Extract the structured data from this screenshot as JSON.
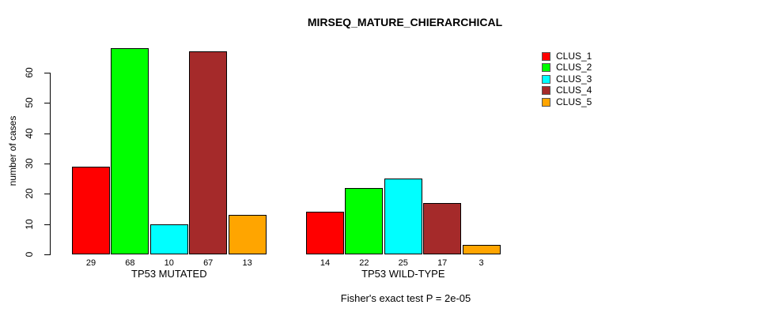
{
  "title": "MIRSEQ_MATURE_CHIERARCHICAL",
  "chart_data": {
    "type": "bar",
    "title": "MIRSEQ_MATURE_CHIERARCHICAL",
    "xlabel": "",
    "ylabel": "number of cases",
    "ylim": [
      0,
      60
    ],
    "yticks": [
      0,
      10,
      20,
      30,
      40,
      50,
      60
    ],
    "grid": false,
    "legend_position": "right-outside",
    "groups": [
      {
        "label": "TP53 MUTATED",
        "values": [
          29,
          68,
          10,
          67,
          13
        ]
      },
      {
        "label": "TP53 WILD-TYPE",
        "values": [
          14,
          22,
          25,
          17,
          3
        ]
      }
    ],
    "series": [
      {
        "name": "CLUS_1",
        "color": "#FF0000",
        "values": [
          29,
          14
        ]
      },
      {
        "name": "CLUS_2",
        "color": "#00FF00",
        "values": [
          68,
          22
        ]
      },
      {
        "name": "CLUS_3",
        "color": "#00FFFF",
        "values": [
          10,
          25
        ]
      },
      {
        "name": "CLUS_4",
        "color": "#A52A2A",
        "values": [
          67,
          17
        ]
      },
      {
        "name": "CLUS_5",
        "color": "#FFA500",
        "values": [
          13,
          3
        ]
      }
    ],
    "legend": [
      {
        "label": "CLUS_1",
        "color": "#FF0000"
      },
      {
        "label": "CLUS_2",
        "color": "#00FF00"
      },
      {
        "label": "CLUS_3",
        "color": "#00FFFF"
      },
      {
        "label": "CLUS_4",
        "color": "#A52A2A"
      },
      {
        "label": "CLUS_5",
        "color": "#FFA500"
      }
    ],
    "annotation": "Fisher's exact test P = 2e-05"
  }
}
